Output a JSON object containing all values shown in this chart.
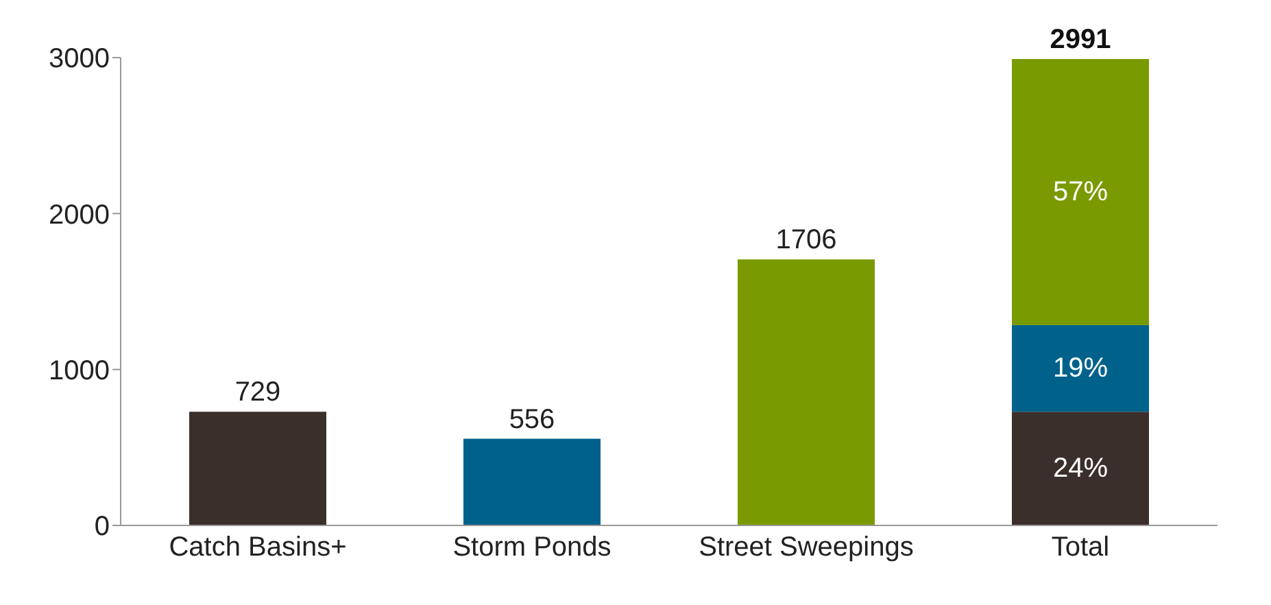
{
  "chart_data": {
    "type": "bar",
    "stacked": true,
    "categories": [
      "Catch Basins+",
      "Storm Ponds",
      "Street Sweepings",
      "Total"
    ],
    "series": [
      {
        "color": "#3b2f2c",
        "values": [
          729,
          null,
          null,
          729
        ],
        "value_labels": [
          "729",
          null,
          null,
          null
        ]
      },
      {
        "color": "#00628b",
        "values": [
          null,
          556,
          null,
          556
        ],
        "value_labels": [
          null,
          "556",
          null,
          null
        ]
      },
      {
        "color": "#7a9a01",
        "values": [
          null,
          null,
          1706,
          1706
        ],
        "value_labels": [
          null,
          null,
          "1706",
          null
        ]
      }
    ],
    "annotations": [
      "24%",
      "19%",
      "57%"
    ],
    "totals": [
      null,
      null,
      null,
      "2991"
    ],
    "ylim": [
      0,
      3000
    ],
    "yticks": [
      0,
      1000,
      2000,
      3000
    ],
    "grid": false,
    "legend": false
  }
}
